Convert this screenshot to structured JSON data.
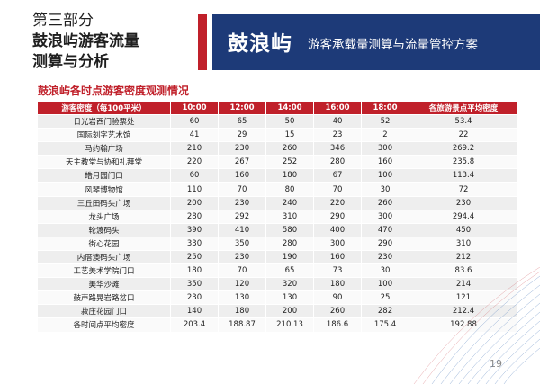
{
  "section": {
    "line1": "第三部分",
    "line2": "鼓浪屿游客流量",
    "line3": "测算与分析"
  },
  "banner": {
    "name": "鼓浪屿",
    "subtitle": "游客承载量测算与流量管控方案"
  },
  "table_title": "鼓浪屿各时点游客密度观测情况",
  "table": {
    "headers": [
      "游客密度（每100平米）",
      "10:00",
      "12:00",
      "14:00",
      "16:00",
      "18:00",
      "各旅游景点平均密度"
    ],
    "rows": [
      [
        "日光岩西门验票处",
        "60",
        "65",
        "50",
        "40",
        "52",
        "53.4"
      ],
      [
        "国际刻字艺术馆",
        "41",
        "29",
        "15",
        "23",
        "2",
        "22"
      ],
      [
        "马约翰广场",
        "210",
        "230",
        "260",
        "346",
        "300",
        "269.2"
      ],
      [
        "天主教堂与协和礼拜堂",
        "220",
        "267",
        "252",
        "280",
        "160",
        "235.8"
      ],
      [
        "皓月园门口",
        "60",
        "160",
        "180",
        "67",
        "100",
        "113.4"
      ],
      [
        "风琴博物馆",
        "110",
        "70",
        "80",
        "70",
        "30",
        "72"
      ],
      [
        "三丘田码头广场",
        "200",
        "230",
        "240",
        "220",
        "260",
        "230"
      ],
      [
        "龙头广场",
        "280",
        "292",
        "310",
        "290",
        "300",
        "294.4"
      ],
      [
        "轮渡码头",
        "390",
        "410",
        "580",
        "400",
        "470",
        "450"
      ],
      [
        "街心花园",
        "330",
        "350",
        "280",
        "300",
        "290",
        "310"
      ],
      [
        "内厝澳码头广场",
        "250",
        "230",
        "190",
        "160",
        "230",
        "212"
      ],
      [
        "工艺美术学院门口",
        "180",
        "70",
        "65",
        "73",
        "30",
        "83.6"
      ],
      [
        "美华沙滩",
        "350",
        "120",
        "320",
        "180",
        "100",
        "214"
      ],
      [
        "鼓声路晃岩路岔口",
        "230",
        "130",
        "130",
        "90",
        "25",
        "121"
      ],
      [
        "菽庄花园门口",
        "140",
        "180",
        "200",
        "260",
        "282",
        "212.4"
      ],
      [
        "各时间点平均密度",
        "203.4",
        "188.87",
        "210.13",
        "186.6",
        "175.4",
        "192.88"
      ]
    ]
  },
  "page_number": "19",
  "colors": {
    "accent": "#c0202a",
    "banner": "#1d3a78"
  }
}
